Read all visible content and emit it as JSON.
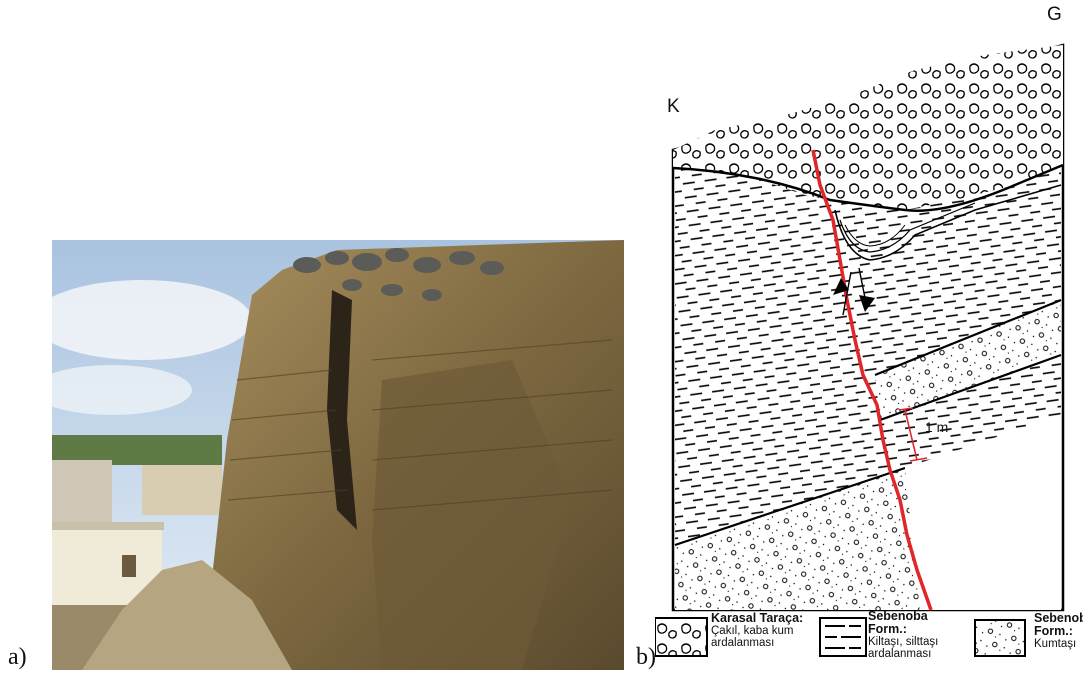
{
  "figure": {
    "panel_a_label": "a)",
    "panel_b_label": "b)"
  },
  "section": {
    "north_label": "K",
    "south_label": "G",
    "scale_label": "1 m"
  },
  "legend": {
    "items": [
      {
        "title": "Karasal Taraça:",
        "line1": "Çakıl, kaba kum",
        "line2": "ardalanması"
      },
      {
        "title": "Sebenoba",
        "title2": "Form.:",
        "line1": "Kiltaşı, silttaşı",
        "line2": "ardalanması"
      },
      {
        "title": "Sebenoba",
        "title2": "Form.:",
        "line1": "Kumtaşı",
        "line2": ""
      }
    ]
  },
  "colors": {
    "fault": "#e0252b",
    "sky": "#b9cfe6",
    "rock": "#8a7448"
  }
}
